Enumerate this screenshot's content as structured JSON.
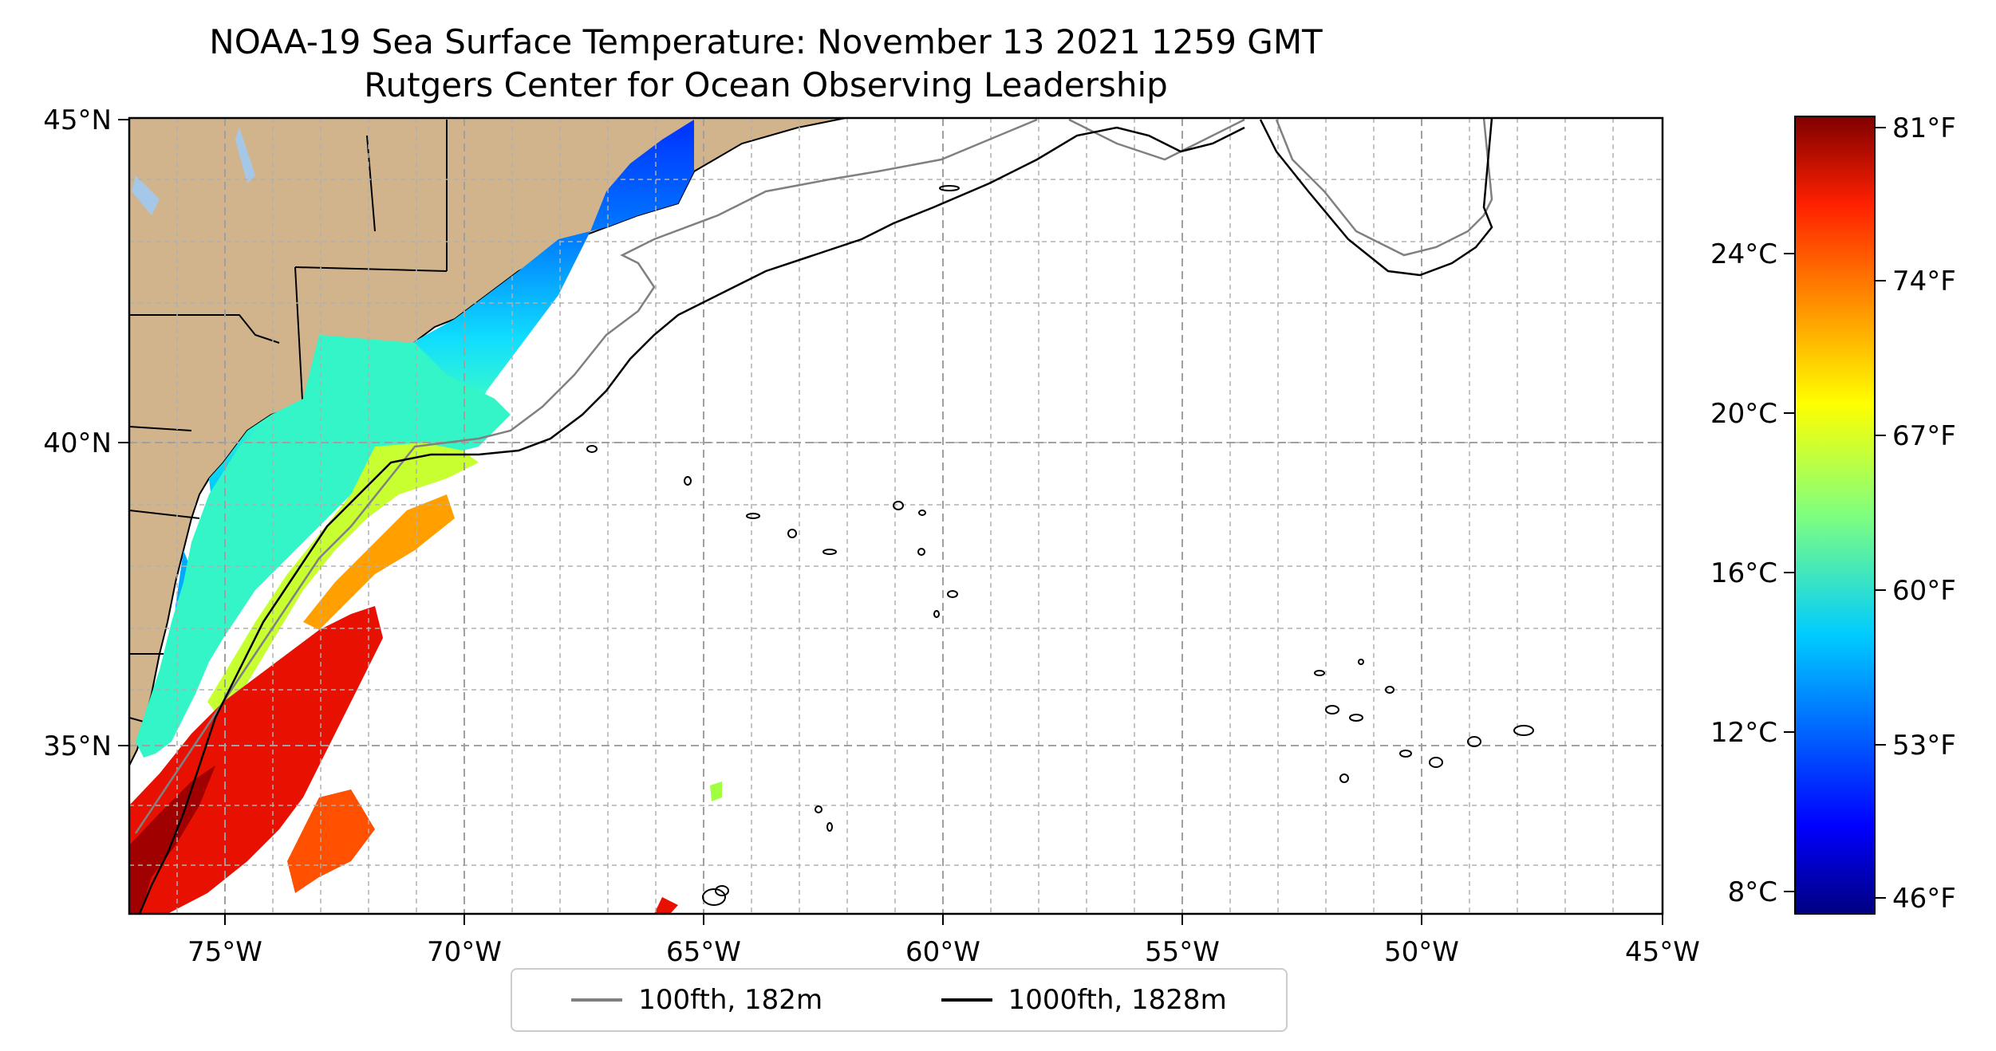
{
  "title": "NOAA-19 Sea Surface Temperature: November 13 2021 1259 GMT",
  "subtitle": "Rutgers Center for Ocean Observing Leadership",
  "map": {
    "lon_range": [
      -77,
      -45
    ],
    "lat_range": [
      32.2,
      45
    ],
    "lon_ticks": [
      "75°W",
      "70°W",
      "65°W",
      "60°W",
      "55°W",
      "50°W",
      "45°W"
    ],
    "lat_ticks": [
      "45°N",
      "40°N",
      "35°N"
    ],
    "land_color": "#d2b48c",
    "lake_color": "#a6c8e8",
    "gridlines": "dashed"
  },
  "colorbar": {
    "colormap": "jet",
    "celsius_ticks": [
      "24°C",
      "20°C",
      "16°C",
      "12°C",
      "8°C"
    ],
    "fahrenheit_ticks": [
      "81°F",
      "74°F",
      "67°F",
      "60°F",
      "53°F",
      "46°F"
    ],
    "range_f": [
      46,
      81
    ]
  },
  "legend": [
    {
      "label": "100fth, 182m",
      "color": "#808080"
    },
    {
      "label": "1000fth, 1828m",
      "color": "#000000"
    }
  ]
}
